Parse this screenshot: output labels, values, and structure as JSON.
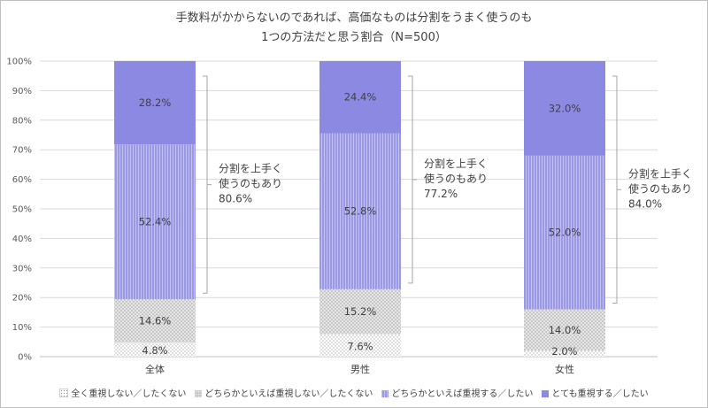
{
  "chart_data": {
    "type": "bar",
    "stacked": true,
    "title_lines": [
      "手数料がかからないのであれば、高価なものは分割をうまく使うのも",
      "1つの方法だと思う割合（N=500）"
    ],
    "categories": [
      "全体",
      "男性",
      "女性"
    ],
    "series": [
      {
        "name": "全く重視しない／したくない",
        "values": [
          4.8,
          7.6,
          2.0
        ],
        "labels": [
          "4.8%",
          "7.6%",
          "2.0%"
        ],
        "color": "#e0e0e0"
      },
      {
        "name": "どちらかといえば重視しない／したくない",
        "values": [
          14.6,
          15.2,
          14.0
        ],
        "labels": [
          "14.6%",
          "15.2%",
          "14.0%"
        ],
        "color": "#bfbfbf"
      },
      {
        "name": "どちらかといえば重視する／したい",
        "values": [
          52.4,
          52.8,
          52.0
        ],
        "labels": [
          "52.4%",
          "52.8%",
          "52.0%"
        ],
        "color": "#9b98e6"
      },
      {
        "name": "とても重視する／したい",
        "values": [
          28.2,
          24.4,
          32.0
        ],
        "labels": [
          "28.2%",
          "24.4%",
          "32.0%"
        ],
        "color": "#8c89e2"
      }
    ],
    "yticks": [
      "0%",
      "10%",
      "20%",
      "30%",
      "40%",
      "50%",
      "60%",
      "70%",
      "80%",
      "90%",
      "100%"
    ],
    "ylim": [
      0,
      100
    ],
    "grid": true,
    "legend_position": "bottom",
    "annotations": [
      {
        "category": "全体",
        "lines": [
          "分割を上手く",
          "使うのもあり",
          "80.6%"
        ]
      },
      {
        "category": "男性",
        "lines": [
          "分割を上手く",
          "使うのもあり",
          "77.2%"
        ]
      },
      {
        "category": "女性",
        "lines": [
          "分割を上手く",
          "使うのもあり",
          "84.0%"
        ]
      }
    ]
  }
}
